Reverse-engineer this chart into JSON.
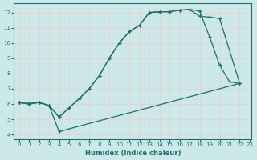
{
  "xlabel": "Humidex (Indice chaleur)",
  "bg_color": "#cce8e8",
  "grid_color": "#d0e8e8",
  "line_color": "#1a7070",
  "xlim": [
    -0.5,
    23.2
  ],
  "ylim": [
    3.7,
    12.6
  ],
  "xticks": [
    0,
    1,
    2,
    3,
    4,
    5,
    6,
    7,
    8,
    9,
    10,
    11,
    12,
    13,
    14,
    15,
    16,
    17,
    18,
    19,
    20,
    21,
    22,
    23
  ],
  "yticks": [
    4,
    5,
    6,
    7,
    8,
    9,
    10,
    11,
    12
  ],
  "line1_x": [
    0,
    1,
    2,
    3,
    4,
    5,
    6,
    7,
    8,
    9,
    10,
    11,
    12,
    13,
    14,
    15,
    16,
    17,
    18,
    19,
    20,
    21,
    22
  ],
  "line1_y": [
    6.1,
    6.0,
    6.1,
    5.9,
    5.15,
    5.75,
    6.35,
    7.0,
    7.85,
    9.0,
    10.0,
    10.75,
    11.15,
    12.0,
    12.05,
    12.05,
    12.15,
    12.2,
    12.1,
    10.4,
    8.55,
    7.45,
    7.35
  ],
  "line2_x": [
    0,
    1,
    2,
    3,
    4,
    5,
    6,
    7,
    8,
    9,
    10,
    11,
    12,
    13,
    14,
    15,
    16,
    17,
    18,
    19,
    20,
    22
  ],
  "line2_y": [
    6.1,
    6.0,
    6.1,
    5.9,
    5.15,
    5.75,
    6.35,
    7.0,
    7.85,
    9.0,
    10.0,
    10.75,
    11.15,
    12.0,
    12.05,
    12.05,
    12.15,
    12.2,
    11.75,
    11.7,
    11.6,
    7.35
  ],
  "line3_x": [
    0,
    2,
    3,
    4,
    22
  ],
  "line3_y": [
    6.1,
    6.1,
    5.9,
    4.2,
    7.35
  ]
}
